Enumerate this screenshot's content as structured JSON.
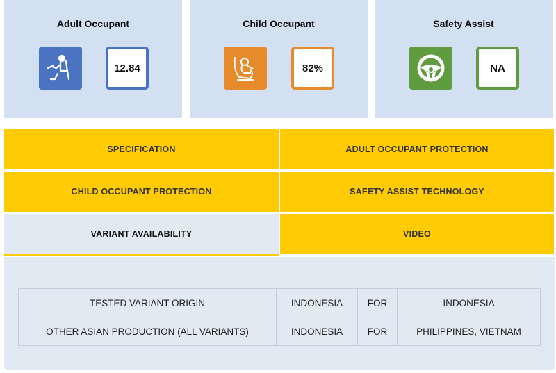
{
  "cards": [
    {
      "title": "Adult Occupant",
      "value": "12.84",
      "icon": "adult-seated-icon",
      "color": "#4a74c1"
    },
    {
      "title": "Child Occupant",
      "value": "82%",
      "icon": "child-seat-icon",
      "color": "#e78a2c"
    },
    {
      "title": "Safety Assist",
      "value": "NA",
      "icon": "steering-wheel-icon",
      "color": "#5f9b3f"
    }
  ],
  "tabs": {
    "specification": "SPECIFICATION",
    "adult_occupant_protection": "ADULT OCCUPANT PROTECTION",
    "child_occupant_protection": "CHILD OCCUPANT PROTECTION",
    "safety_assist_technology": "SAFETY ASSIST TECHNOLOGY",
    "variant_availability": "VARIANT AVAILABILITY",
    "video": "VIDEO"
  },
  "variant_table": {
    "rows": [
      [
        "TESTED VARIANT ORIGIN",
        "INDONESIA",
        "FOR",
        "INDONESIA"
      ],
      [
        "OTHER ASIAN PRODUCTION (ALL VARIANTS)",
        "INDONESIA",
        "FOR",
        "PHILIPPINES, VIETNAM"
      ]
    ]
  },
  "colors": {
    "accent_yellow": "#ffcb05",
    "card_bg": "#d3e0f2",
    "panel_bg": "#e1e9f3"
  }
}
